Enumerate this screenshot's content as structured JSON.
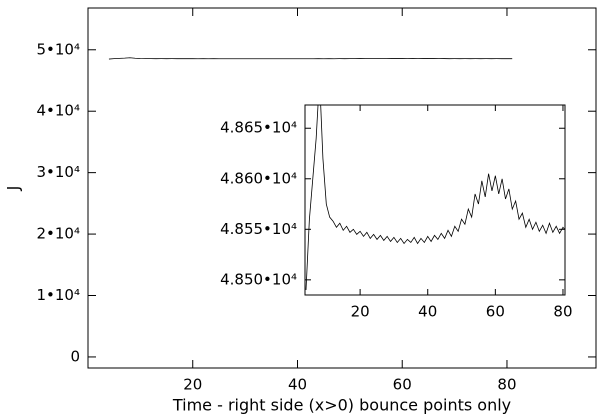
{
  "chart_data": [
    {
      "type": "line",
      "x_label": "Time - right side (x>0) bounce points only",
      "y_label": "J",
      "xlim": [
        0,
        97
      ],
      "ylim": [
        -1800,
        56800
      ],
      "xticks": [
        20,
        40,
        60,
        80
      ],
      "yticks": [
        0,
        {
          "value": 10000,
          "label": "1•10⁴"
        },
        {
          "value": 20000,
          "label": "2•10⁴"
        },
        {
          "value": 30000,
          "label": "3•10⁴"
        },
        {
          "value": 40000,
          "label": "4•10⁴"
        },
        {
          "value": 50000,
          "label": "5•10⁴"
        }
      ],
      "color": "#000000",
      "x": [
        4,
        5,
        6,
        7,
        8,
        9,
        10,
        11,
        12,
        13,
        14,
        15,
        16,
        17,
        18,
        19,
        20,
        21,
        22,
        23,
        24,
        25,
        26,
        27,
        28,
        29,
        30,
        31,
        32,
        33,
        34,
        35,
        36,
        37,
        38,
        39,
        40,
        41,
        42,
        43,
        44,
        45,
        46,
        47,
        48,
        49,
        50,
        51,
        52,
        53,
        54,
        55,
        56,
        57,
        58,
        59,
        60,
        61,
        62,
        63,
        64,
        65,
        66,
        67,
        68,
        69,
        70,
        71,
        72,
        73,
        74,
        75,
        76,
        77,
        78,
        79,
        80,
        81
      ],
      "values": [
        48490,
        48560,
        48600,
        48640,
        48700,
        48620,
        48575,
        48562,
        48558,
        48552,
        48556,
        48549,
        48553,
        48547,
        48550,
        48545,
        48548,
        48543,
        48547,
        48541,
        48545,
        48540,
        48544,
        48539,
        48543,
        48538,
        48542,
        48537,
        48541,
        48536,
        48540,
        48537,
        48542,
        48536,
        48541,
        48537,
        48543,
        48538,
        48544,
        48540,
        48546,
        48541,
        48549,
        48543,
        48553,
        48548,
        48560,
        48555,
        48570,
        48562,
        48585,
        48575,
        48598,
        48582,
        48605,
        48588,
        48603,
        48585,
        48600,
        48580,
        48590,
        48570,
        48578,
        48560,
        48566,
        48552,
        48560,
        48550,
        48557,
        48548,
        48554,
        48546,
        48556,
        48547,
        48553,
        48546,
        48552,
        48548
      ]
    },
    {
      "type": "line",
      "xlim": [
        3.7,
        80.6
      ],
      "ylim": [
        48485,
        48673
      ],
      "xticks": [
        20,
        40,
        60,
        80
      ],
      "yticks": [
        {
          "value": 48500,
          "label": "4.850•10⁴"
        },
        {
          "value": 48550,
          "label": "4.855•10⁴"
        },
        {
          "value": 48600,
          "label": "4.860•10⁴"
        },
        {
          "value": 48650,
          "label": "4.865•10⁴"
        }
      ],
      "color": "#000000",
      "x": [
        4,
        5,
        6,
        7,
        8,
        9,
        10,
        11,
        12,
        13,
        14,
        15,
        16,
        17,
        18,
        19,
        20,
        21,
        22,
        23,
        24,
        25,
        26,
        27,
        28,
        29,
        30,
        31,
        32,
        33,
        34,
        35,
        36,
        37,
        38,
        39,
        40,
        41,
        42,
        43,
        44,
        45,
        46,
        47,
        48,
        49,
        50,
        51,
        52,
        53,
        54,
        55,
        56,
        57,
        58,
        59,
        60,
        61,
        62,
        63,
        64,
        65,
        66,
        67,
        68,
        69,
        70,
        71,
        72,
        73,
        74,
        75,
        76,
        77,
        78,
        79,
        80,
        81
      ],
      "values": [
        48490,
        48560,
        48600,
        48640,
        48700,
        48620,
        48575,
        48562,
        48558,
        48552,
        48556,
        48549,
        48553,
        48547,
        48550,
        48545,
        48548,
        48543,
        48547,
        48541,
        48545,
        48540,
        48544,
        48539,
        48543,
        48538,
        48542,
        48537,
        48541,
        48536,
        48540,
        48537,
        48542,
        48536,
        48541,
        48537,
        48543,
        48538,
        48544,
        48540,
        48546,
        48541,
        48549,
        48543,
        48553,
        48548,
        48560,
        48555,
        48570,
        48562,
        48585,
        48575,
        48598,
        48582,
        48605,
        48588,
        48603,
        48585,
        48600,
        48580,
        48590,
        48570,
        48578,
        48560,
        48566,
        48552,
        48560,
        48550,
        48557,
        48548,
        48554,
        48546,
        48556,
        48547,
        48553,
        48546,
        48552,
        48548
      ]
    }
  ]
}
